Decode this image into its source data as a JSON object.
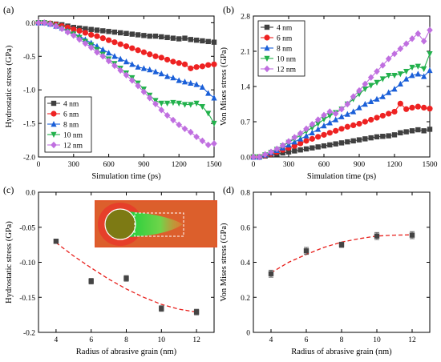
{
  "chart_data": [
    {
      "panel_label": "(a)",
      "type": "line",
      "xlabel": "Simulation time (ps)",
      "ylabel": "Hydrostatic stress (GPa)",
      "xlim": [
        0,
        1500
      ],
      "ylim": [
        -2.0,
        0.1
      ],
      "xticks": [
        0,
        300,
        600,
        900,
        1200,
        1500
      ],
      "yticks": [
        0.0,
        -0.5,
        -1.0,
        -1.5,
        -2.0
      ],
      "ytick_labels": [
        "0.0",
        "-0.5",
        "-1.0",
        "-1.5",
        "-2.0"
      ],
      "legend_position": "lower-left",
      "x": [
        0,
        50,
        100,
        150,
        200,
        250,
        300,
        350,
        400,
        450,
        500,
        550,
        600,
        650,
        700,
        750,
        800,
        850,
        900,
        950,
        1000,
        1050,
        1100,
        1150,
        1200,
        1250,
        1300,
        1350,
        1400,
        1450,
        1500
      ],
      "series": [
        {
          "name": "4 nm",
          "marker": "square",
          "color": "#404040",
          "values": [
            0,
            0,
            -0.01,
            -0.02,
            -0.03,
            -0.05,
            -0.07,
            -0.08,
            -0.09,
            -0.1,
            -0.11,
            -0.12,
            -0.13,
            -0.14,
            -0.15,
            -0.16,
            -0.17,
            -0.18,
            -0.19,
            -0.2,
            -0.2,
            -0.21,
            -0.22,
            -0.23,
            -0.24,
            -0.23,
            -0.25,
            -0.26,
            -0.27,
            -0.28,
            -0.29
          ]
        },
        {
          "name": "6 nm",
          "marker": "circle",
          "color": "#ee2222",
          "values": [
            0,
            0,
            -0.01,
            -0.03,
            -0.05,
            -0.07,
            -0.1,
            -0.12,
            -0.15,
            -0.18,
            -0.2,
            -0.23,
            -0.26,
            -0.29,
            -0.32,
            -0.35,
            -0.38,
            -0.41,
            -0.44,
            -0.47,
            -0.5,
            -0.52,
            -0.55,
            -0.58,
            -0.6,
            -0.62,
            -0.68,
            -0.66,
            -0.65,
            -0.63,
            -0.62
          ]
        },
        {
          "name": "8 nm",
          "marker": "triangle-up",
          "color": "#1a5fd8",
          "values": [
            0,
            0,
            -0.02,
            -0.05,
            -0.08,
            -0.12,
            -0.16,
            -0.2,
            -0.25,
            -0.3,
            -0.35,
            -0.4,
            -0.45,
            -0.5,
            -0.54,
            -0.58,
            -0.62,
            -0.66,
            -0.68,
            -0.7,
            -0.73,
            -0.76,
            -0.8,
            -0.82,
            -0.86,
            -0.88,
            -0.9,
            -0.92,
            -0.96,
            -1.05,
            -1.12
          ]
        },
        {
          "name": "10 nm",
          "marker": "triangle-down",
          "color": "#22b14c",
          "values": [
            0,
            0,
            -0.02,
            -0.05,
            -0.09,
            -0.13,
            -0.17,
            -0.22,
            -0.28,
            -0.33,
            -0.4,
            -0.47,
            -0.54,
            -0.61,
            -0.68,
            -0.75,
            -0.82,
            -0.9,
            -0.99,
            -1.08,
            -1.16,
            -1.2,
            -1.2,
            -1.19,
            -1.2,
            -1.22,
            -1.22,
            -1.2,
            -1.25,
            -1.35,
            -1.5
          ]
        },
        {
          "name": "12 nm",
          "marker": "diamond",
          "color": "#c06fe0",
          "values": [
            0,
            0,
            -0.02,
            -0.05,
            -0.09,
            -0.14,
            -0.19,
            -0.25,
            -0.31,
            -0.37,
            -0.44,
            -0.5,
            -0.57,
            -0.64,
            -0.71,
            -0.78,
            -0.86,
            -0.94,
            -1.03,
            -1.12,
            -1.21,
            -1.3,
            -1.38,
            -1.45,
            -1.52,
            -1.58,
            -1.63,
            -1.7,
            -1.76,
            -1.82,
            -1.8
          ]
        }
      ]
    },
    {
      "panel_label": "(b)",
      "type": "line",
      "xlabel": "Simulation time (ps)",
      "ylabel": "Von Mises stress (GPa)",
      "xlim": [
        0,
        1500
      ],
      "ylim": [
        0.0,
        2.8
      ],
      "xticks": [
        0,
        300,
        600,
        900,
        1200,
        1500
      ],
      "yticks": [
        0.0,
        0.7,
        1.4,
        2.1,
        2.8
      ],
      "ytick_labels": [
        "0.0",
        "0.7",
        "1.4",
        "2.1",
        "2.8"
      ],
      "legend_position": "top-left",
      "x": [
        0,
        50,
        100,
        150,
        200,
        250,
        300,
        350,
        400,
        450,
        500,
        550,
        600,
        650,
        700,
        750,
        800,
        850,
        900,
        950,
        1000,
        1050,
        1100,
        1150,
        1200,
        1250,
        1300,
        1350,
        1400,
        1450,
        1500
      ],
      "series": [
        {
          "name": "4 nm",
          "marker": "square",
          "color": "#404040",
          "values": [
            0,
            0,
            0.02,
            0.04,
            0.06,
            0.08,
            0.1,
            0.12,
            0.14,
            0.16,
            0.18,
            0.2,
            0.22,
            0.24,
            0.26,
            0.28,
            0.3,
            0.32,
            0.34,
            0.36,
            0.38,
            0.4,
            0.41,
            0.42,
            0.44,
            0.48,
            0.5,
            0.52,
            0.54,
            0.52,
            0.55
          ]
        },
        {
          "name": "6 nm",
          "marker": "circle",
          "color": "#ee2222",
          "values": [
            0,
            0,
            0.03,
            0.06,
            0.1,
            0.14,
            0.18,
            0.22,
            0.27,
            0.32,
            0.36,
            0.4,
            0.44,
            0.48,
            0.52,
            0.56,
            0.6,
            0.63,
            0.66,
            0.7,
            0.74,
            0.78,
            0.82,
            0.86,
            0.9,
            1.06,
            0.95,
            0.98,
            1.0,
            0.98,
            0.96
          ]
        },
        {
          "name": "8 nm",
          "marker": "triangle-up",
          "color": "#1a5fd8",
          "values": [
            0,
            0,
            0.04,
            0.08,
            0.13,
            0.18,
            0.24,
            0.3,
            0.36,
            0.42,
            0.48,
            0.55,
            0.62,
            0.68,
            0.74,
            0.8,
            0.85,
            0.9,
            0.98,
            1.05,
            1.1,
            1.15,
            1.2,
            1.28,
            1.35,
            1.45,
            1.55,
            1.62,
            1.65,
            1.6,
            1.72
          ]
        },
        {
          "name": "10 nm",
          "marker": "triangle-down",
          "color": "#22b14c",
          "values": [
            0,
            0,
            0.04,
            0.09,
            0.15,
            0.22,
            0.29,
            0.36,
            0.43,
            0.51,
            0.58,
            0.66,
            0.75,
            0.82,
            0.88,
            0.95,
            1.05,
            1.15,
            1.25,
            1.35,
            1.42,
            1.48,
            1.55,
            1.62,
            1.62,
            1.65,
            1.7,
            1.78,
            1.8,
            1.75,
            2.05
          ]
        },
        {
          "name": "12 nm",
          "marker": "diamond",
          "color": "#c06fe0",
          "values": [
            0,
            0,
            0.05,
            0.1,
            0.16,
            0.23,
            0.31,
            0.39,
            0.47,
            0.56,
            0.65,
            0.74,
            0.83,
            0.9,
            0.86,
            0.95,
            1.05,
            1.2,
            1.32,
            1.45,
            1.58,
            1.7,
            1.82,
            1.95,
            2.05,
            2.15,
            2.25,
            2.35,
            2.45,
            2.3,
            2.52
          ]
        }
      ]
    },
    {
      "panel_label": "(c)",
      "type": "scatter",
      "xlabel": "Radius of abrasive grain (nm)",
      "ylabel": "Hydrostatic stress (GPa)",
      "xlim": [
        3,
        13
      ],
      "ylim": [
        -0.2,
        0.0
      ],
      "xticks": [
        4,
        6,
        8,
        10,
        12
      ],
      "yticks": [
        0.0,
        -0.05,
        -0.1,
        -0.15,
        -0.2
      ],
      "ytick_labels": [
        "0.0",
        "-0.05",
        "-0.10",
        "-0.15",
        "-0.2"
      ],
      "x": [
        4,
        6,
        8,
        10,
        12
      ],
      "values": [
        -0.07,
        -0.127,
        -0.123,
        -0.166,
        -0.171
      ],
      "errors": [
        0.003,
        0.004,
        0.004,
        0.004,
        0.004
      ],
      "fit_curve": {
        "x": [
          4,
          5,
          6,
          7,
          8,
          9,
          10,
          11,
          12
        ],
        "y": [
          -0.072,
          -0.091,
          -0.108,
          -0.124,
          -0.138,
          -0.15,
          -0.16,
          -0.167,
          -0.171
        ]
      },
      "has_inset_image": true
    },
    {
      "panel_label": "(d)",
      "type": "scatter",
      "xlabel": "Radius of abrasive grain (nm)",
      "ylabel": "Von Mises stress (GPa)",
      "xlim": [
        3,
        13
      ],
      "ylim": [
        0.0,
        0.8
      ],
      "xticks": [
        4,
        6,
        8,
        10,
        12
      ],
      "yticks": [
        0.0,
        0.2,
        0.4,
        0.6,
        0.8
      ],
      "ytick_labels": [
        "0",
        "0.2",
        "0.4",
        "0.6",
        "0.8"
      ],
      "x": [
        4,
        6,
        8,
        10,
        12
      ],
      "values": [
        0.335,
        0.465,
        0.5,
        0.55,
        0.555
      ],
      "errors": [
        0.02,
        0.02,
        0.015,
        0.02,
        0.02
      ],
      "fit_curve": {
        "x": [
          4,
          5,
          6,
          7,
          8,
          9,
          10,
          11,
          12
        ],
        "y": [
          0.34,
          0.4,
          0.445,
          0.485,
          0.515,
          0.535,
          0.55,
          0.555,
          0.557
        ]
      }
    }
  ]
}
